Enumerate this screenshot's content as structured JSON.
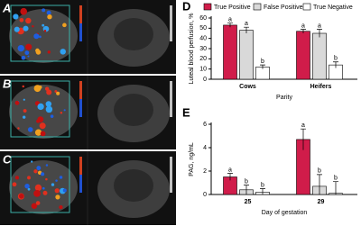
{
  "images": [
    {
      "label": "A"
    },
    {
      "label": "B"
    },
    {
      "label": "C"
    }
  ],
  "chart_data": [
    {
      "type": "bar",
      "label": "D",
      "y_label": "Luteal blood perfusion, %",
      "x_label": "Parity",
      "categories": [
        "Cows",
        "Heifers"
      ],
      "series": [
        {
          "name": "True Positive",
          "color": "#d01c4a",
          "values": [
            53,
            47
          ],
          "errors": [
            2,
            2
          ],
          "letters": [
            "a",
            "a"
          ]
        },
        {
          "name": "False Positive",
          "color": "#d9d9d9",
          "values": [
            48,
            45
          ],
          "errors": [
            3,
            4
          ],
          "letters": [
            "a",
            "a"
          ]
        },
        {
          "name": "True Negative",
          "color": "#ffffff",
          "values": [
            12,
            14
          ],
          "errors": [
            2,
            3
          ],
          "letters": [
            "b",
            "b"
          ]
        }
      ],
      "ylim": [
        0,
        60
      ],
      "yticks": [
        0,
        10,
        20,
        30,
        40,
        50,
        60
      ],
      "legend": "top"
    },
    {
      "type": "bar",
      "label": "E",
      "y_label": "PAG, ng/mL",
      "x_label": "Day of gestation",
      "categories": [
        "25",
        "29"
      ],
      "series": [
        {
          "name": "True Positive",
          "color": "#d01c4a",
          "values": [
            1.5,
            4.7
          ],
          "errors": [
            0.3,
            0.9
          ],
          "letters": [
            "a",
            "a"
          ]
        },
        {
          "name": "False Positive",
          "color": "#d9d9d9",
          "values": [
            0.4,
            0.7
          ],
          "errors": [
            0.4,
            1.0
          ],
          "letters": [
            "b",
            "b"
          ]
        },
        {
          "name": "True Negative",
          "color": "#ffffff",
          "values": [
            0.2,
            0.1
          ],
          "errors": [
            0.3,
            1.0
          ],
          "letters": [
            "b",
            "b"
          ]
        }
      ],
      "ylim": [
        0,
        6
      ],
      "yticks": [
        0,
        2,
        4,
        6
      ]
    }
  ]
}
